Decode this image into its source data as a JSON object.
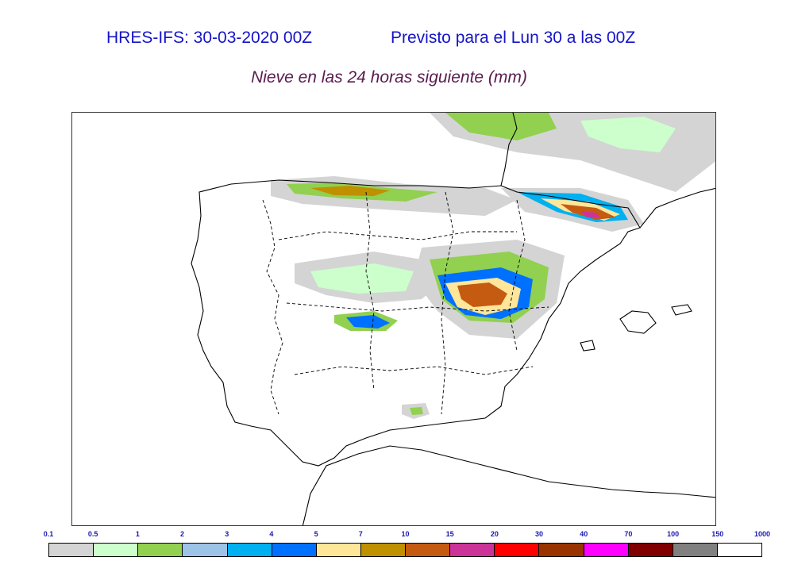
{
  "header": {
    "model_run": "HRES-IFS: 30-03-2020 00Z",
    "forecast_for": "Previsto para el  Lun 30 a las 00Z",
    "subtitle": "Nieve en las 24 horas siguiente (mm)"
  },
  "legend": {
    "labels": [
      "0.1",
      "0.5",
      "1",
      "2",
      "3",
      "4",
      "5",
      "7",
      "10",
      "15",
      "20",
      "30",
      "40",
      "70",
      "100",
      "150",
      "1000"
    ],
    "colors": [
      "#d4d4d4",
      "#ccffcc",
      "#92d050",
      "#9dc3e6",
      "#00b0f0",
      "#0070ff",
      "#ffe699",
      "#bf9000",
      "#c55a11",
      "#cc3399",
      "#ff0000",
      "#993300",
      "#ff00ff",
      "#800000",
      "#808080",
      "#ffffff"
    ]
  }
}
